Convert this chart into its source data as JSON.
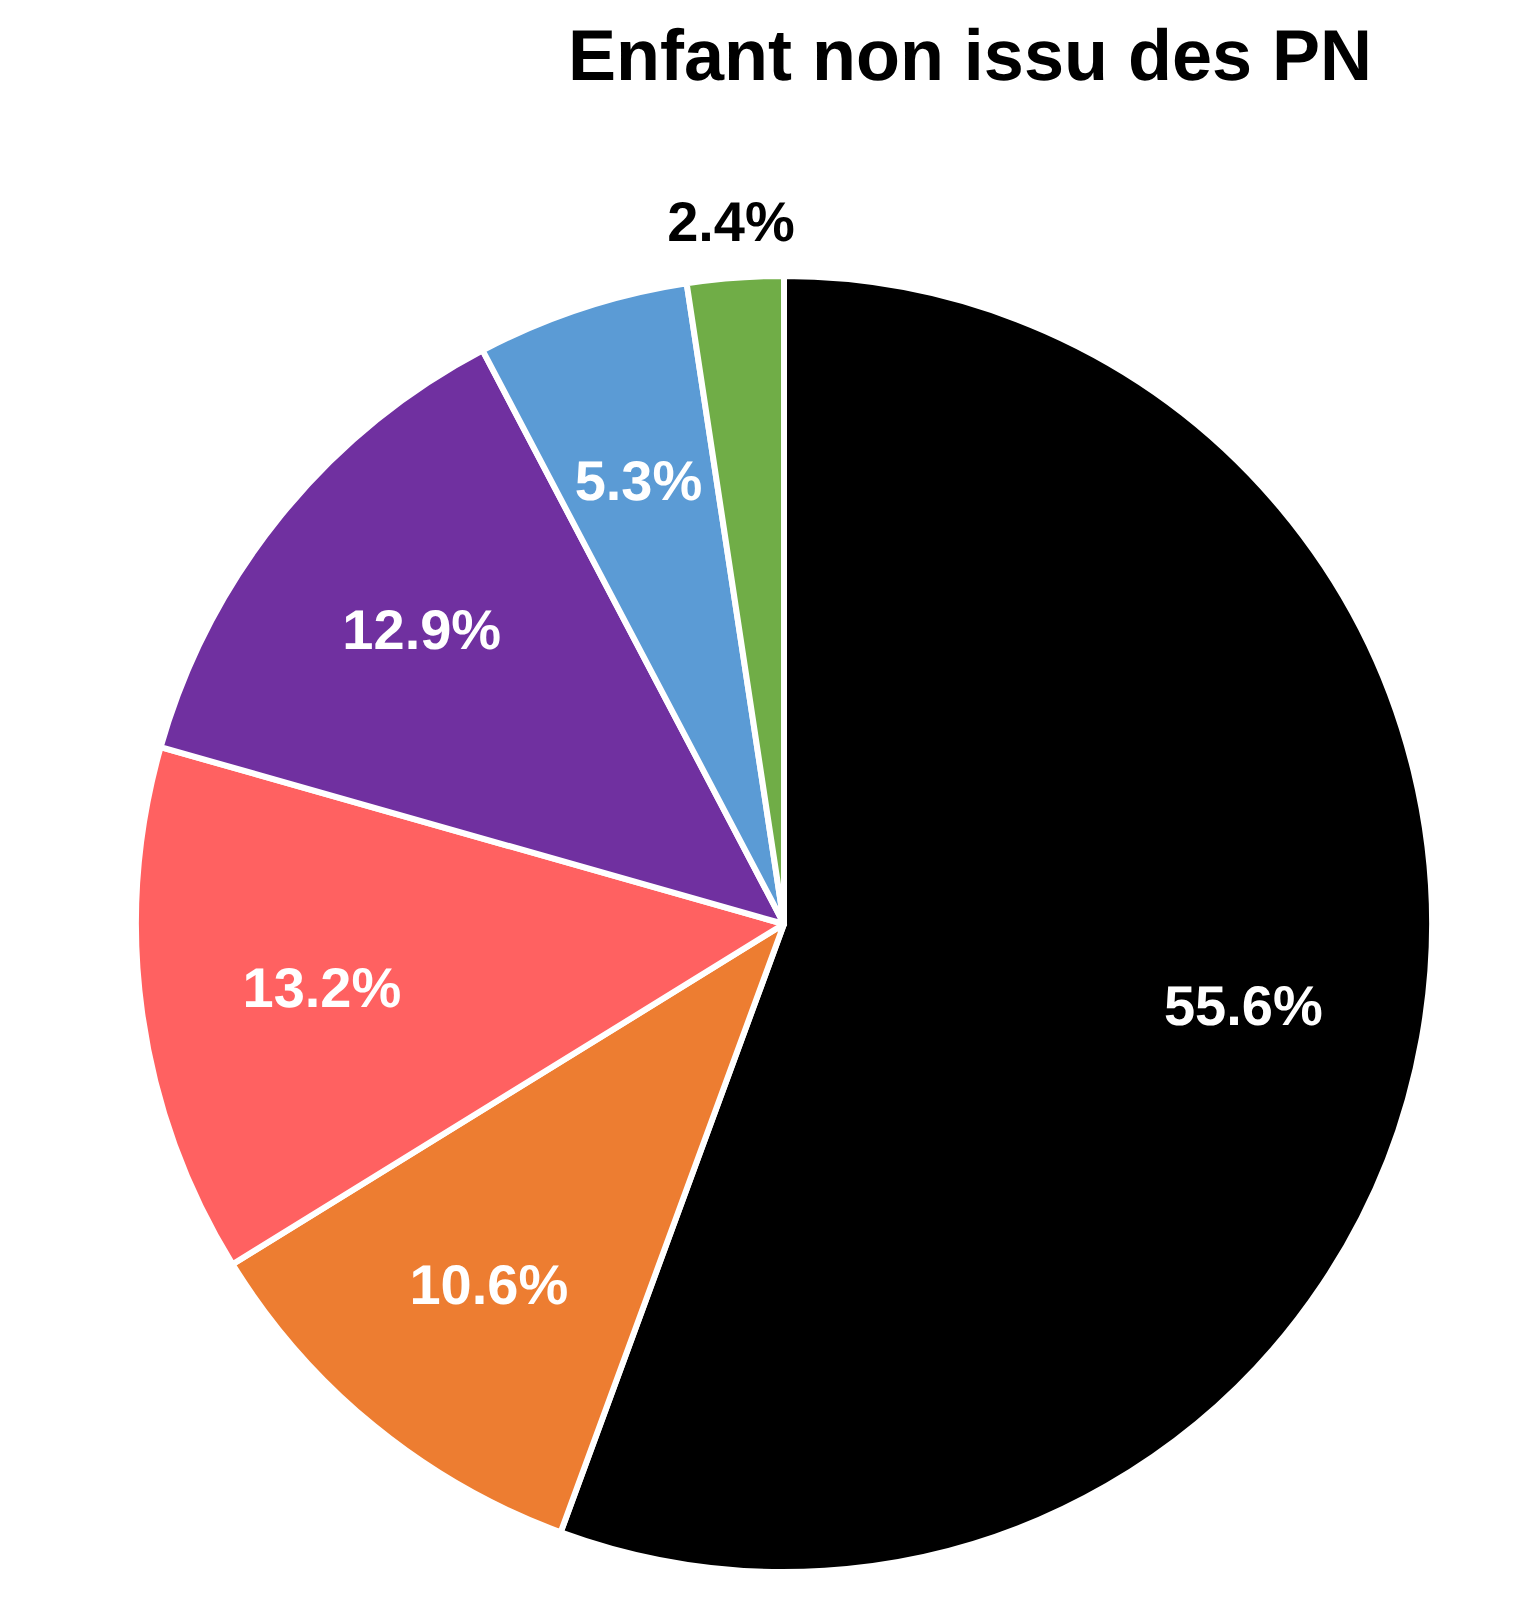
{
  "chart_data": {
    "type": "pie",
    "title": "Enfant non issu des PN",
    "categories": [
      null,
      null,
      null,
      null,
      null,
      null
    ],
    "values": [
      55.6,
      10.6,
      13.2,
      12.9,
      5.3,
      2.4
    ],
    "colors": [
      "#000000",
      "#ed7d31",
      "#ff6161",
      "#7030a0",
      "#5b9bd5",
      "#70ad47"
    ],
    "value_labels": [
      "55.6%",
      "10.6%",
      "13.2%",
      "12.9%",
      "5.3%",
      "2.4%"
    ]
  }
}
